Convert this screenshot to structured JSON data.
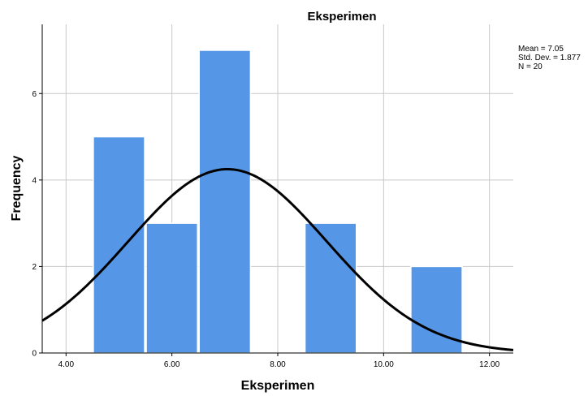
{
  "chart_data": {
    "type": "bar",
    "title": "Eksperimen",
    "xlabel": "Eksperimen",
    "ylabel": "Frequency",
    "xlim": [
      3.55,
      12.45
    ],
    "ylim": [
      0,
      7.6
    ],
    "x_ticks": [
      4,
      6,
      8,
      10,
      12
    ],
    "x_tick_labels": [
      "4.00",
      "6.00",
      "8.00",
      "10.00",
      "12.00"
    ],
    "y_ticks": [
      0,
      2,
      4,
      6
    ],
    "y_tick_labels": [
      "0",
      "2",
      "4",
      "6"
    ],
    "grid": true,
    "bin_width": 1,
    "bins": [
      {
        "center": 5,
        "value": 5
      },
      {
        "center": 6,
        "value": 3
      },
      {
        "center": 7,
        "value": 7
      },
      {
        "center": 9,
        "value": 3
      },
      {
        "center": 11,
        "value": 2
      }
    ],
    "normal_curve": {
      "mean": 7.05,
      "sd": 1.877,
      "n": 20
    },
    "stats": {
      "mean_line": "Mean = 7.05",
      "sd_line": "Std. Dev. = 1.877",
      "n_line": "N = 20"
    },
    "colors": {
      "bar": "#5596e6",
      "curve": "#000000",
      "grid": "#c8c8c8"
    }
  }
}
